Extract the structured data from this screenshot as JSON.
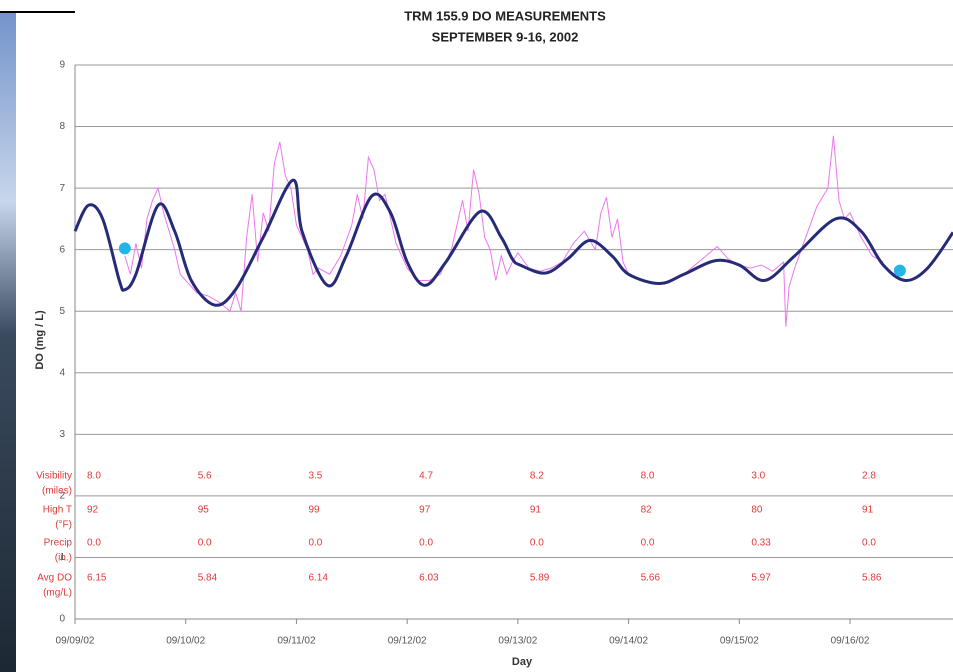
{
  "chart_data": {
    "type": "line",
    "title": "TRM 155.9 DO MEASUREMENTS",
    "subtitle": "SEPTEMBER 9-16, 2002",
    "x_label": "Day",
    "y_label": "DO (mg / L)",
    "xlim": [
      0,
      7.93
    ],
    "xticks": [
      {
        "value": 0,
        "label": "09/09/02"
      },
      {
        "value": 1,
        "label": "09/10/02"
      },
      {
        "value": 2,
        "label": "09/11/02"
      },
      {
        "value": 3,
        "label": "09/12/02"
      },
      {
        "value": 4,
        "label": "09/13/02"
      },
      {
        "value": 5,
        "label": "09/14/02"
      },
      {
        "value": 6,
        "label": "09/15/02"
      },
      {
        "value": 7,
        "label": "09/16/02"
      }
    ],
    "ylim": [
      0,
      9
    ],
    "yticks": [
      0,
      1,
      2,
      3,
      4,
      5,
      6,
      7,
      8,
      9
    ],
    "grid": true,
    "series": [
      {
        "style": "line",
        "color": "#ee77ee",
        "width": 1,
        "x": [
          0.45,
          0.5,
          0.55,
          0.6,
          0.65,
          0.7,
          0.75,
          0.8,
          0.85,
          0.9,
          0.95,
          1.0,
          1.05,
          1.1,
          1.2,
          1.3,
          1.4,
          1.45,
          1.5,
          1.55,
          1.6,
          1.65,
          1.7,
          1.75,
          1.8,
          1.85,
          1.9,
          1.95,
          2.0,
          2.05,
          2.1,
          2.15,
          2.2,
          2.3,
          2.4,
          2.5,
          2.55,
          2.6,
          2.65,
          2.7,
          2.75,
          2.8,
          2.9,
          3.0,
          3.1,
          3.2,
          3.3,
          3.4,
          3.5,
          3.55,
          3.6,
          3.65,
          3.7,
          3.75,
          3.8,
          3.85,
          3.9,
          3.95,
          4.0,
          4.1,
          4.2,
          4.3,
          4.4,
          4.5,
          4.6,
          4.7,
          4.75,
          4.8,
          4.85,
          4.9,
          4.95,
          5.0,
          5.1,
          5.3,
          5.5,
          5.7,
          5.8,
          5.9,
          6.0,
          6.1,
          6.2,
          6.3,
          6.4,
          6.42,
          6.45,
          6.5,
          6.6,
          6.7,
          6.8,
          6.85,
          6.9,
          6.95,
          7.0,
          7.1,
          7.2,
          7.3
        ],
        "values": [
          5.9,
          5.6,
          6.1,
          5.7,
          6.5,
          6.8,
          7.0,
          6.6,
          6.3,
          6.0,
          5.6,
          5.5,
          5.4,
          5.3,
          5.25,
          5.15,
          5.0,
          5.3,
          5.0,
          6.2,
          6.9,
          5.8,
          6.6,
          6.3,
          7.4,
          7.75,
          7.2,
          7.0,
          6.4,
          6.2,
          6.0,
          5.6,
          5.7,
          5.6,
          5.9,
          6.4,
          6.9,
          6.5,
          7.5,
          7.3,
          6.8,
          6.9,
          6.1,
          5.7,
          5.5,
          5.5,
          5.6,
          6.0,
          6.8,
          6.3,
          7.3,
          6.9,
          6.2,
          6.0,
          5.5,
          5.9,
          5.6,
          5.8,
          5.95,
          5.7,
          5.65,
          5.7,
          5.8,
          6.1,
          6.3,
          6.0,
          6.6,
          6.85,
          6.2,
          6.5,
          5.8,
          5.6,
          5.5,
          5.45,
          5.6,
          5.9,
          6.05,
          5.85,
          5.75,
          5.7,
          5.75,
          5.65,
          5.8,
          4.75,
          5.4,
          5.7,
          6.2,
          6.7,
          7.0,
          7.85,
          6.8,
          6.5,
          6.6,
          6.2,
          5.9,
          5.8
        ]
      },
      {
        "style": "smooth",
        "color": "#262b78",
        "width": 3,
        "x": [
          0,
          0.12,
          0.25,
          0.4,
          0.45,
          0.55,
          0.75,
          0.9,
          1.05,
          1.26,
          1.45,
          1.7,
          1.97,
          2.05,
          2.28,
          2.45,
          2.68,
          2.85,
          3.0,
          3.16,
          3.35,
          3.66,
          3.85,
          3.95,
          4.02,
          4.25,
          4.45,
          4.65,
          4.85,
          5.0,
          5.28,
          5.5,
          5.78,
          6.0,
          6.23,
          6.5,
          6.87,
          7.1,
          7.3,
          7.5,
          7.7,
          7.93
        ],
        "values": [
          6.3,
          6.72,
          6.5,
          5.5,
          5.35,
          5.6,
          6.72,
          6.3,
          5.5,
          5.1,
          5.35,
          6.2,
          7.13,
          6.3,
          5.42,
          5.9,
          6.87,
          6.6,
          5.8,
          5.42,
          5.8,
          6.62,
          6.2,
          5.85,
          5.75,
          5.62,
          5.85,
          6.15,
          5.9,
          5.6,
          5.45,
          5.6,
          5.82,
          5.75,
          5.5,
          5.9,
          6.5,
          6.3,
          5.75,
          5.5,
          5.7,
          6.28
        ]
      },
      {
        "style": "markers",
        "color": "#22b6e6",
        "x": [
          0.45,
          7.45
        ],
        "values": [
          6.02,
          5.66
        ]
      }
    ],
    "table": {
      "color": "#e03a3a",
      "rows": [
        {
          "label": [
            "Visibility",
            "(miles)"
          ],
          "cells": [
            "8.0",
            "5.6",
            "3.5",
            "4.7",
            "8.2",
            "8.0",
            "3.0",
            "2.8"
          ]
        },
        {
          "label": [
            "High T",
            "(°F)"
          ],
          "cells": [
            "92",
            "95",
            "99",
            "97",
            "91",
            "82",
            "80",
            "91"
          ]
        },
        {
          "label": [
            "Precip",
            "(in.)"
          ],
          "cells": [
            "0.0",
            "0.0",
            "0.0",
            "0.0",
            "0.0",
            "0.0",
            "0.33",
            "0.0"
          ]
        },
        {
          "label": [
            "Avg DO",
            "(mg/L)"
          ],
          "cells": [
            "6.15",
            "5.84",
            "6.14",
            "6.03",
            "5.89",
            "5.66",
            "5.97",
            "5.86"
          ]
        }
      ]
    }
  }
}
